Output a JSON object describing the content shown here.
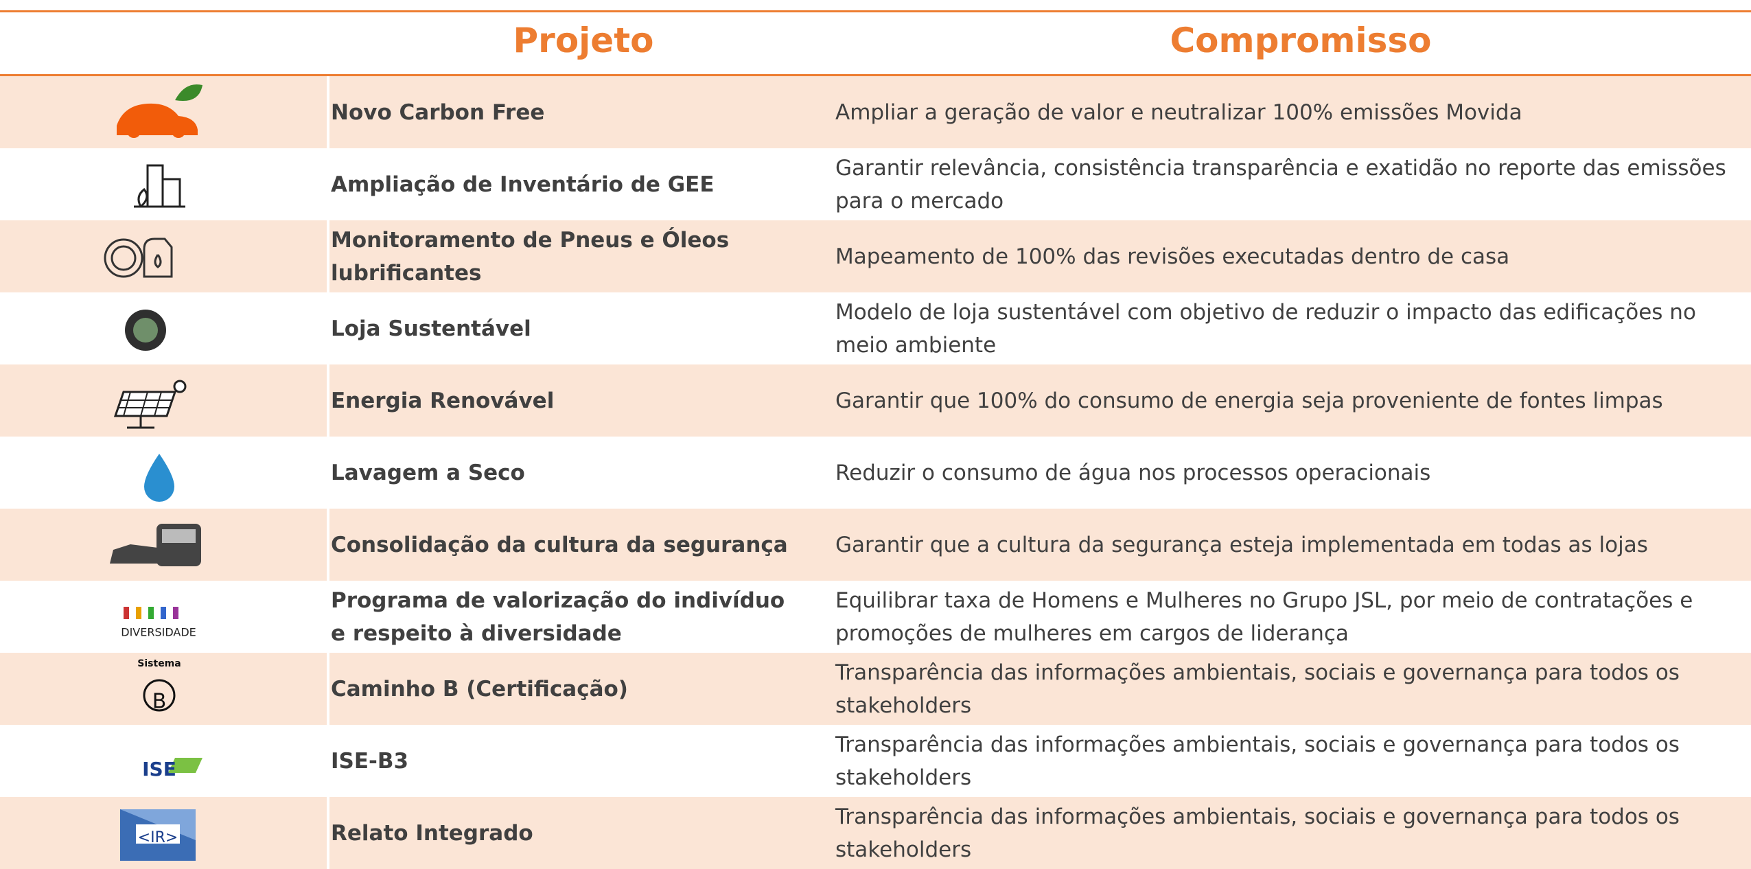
{
  "header": {
    "project": "Projeto",
    "commitment": "Compromisso"
  },
  "rows": [
    {
      "project": "Novo Carbon Free",
      "commitment": "Ampliar a geração de valor e neutralizar 100% emissões Movida"
    },
    {
      "project": "Ampliação de Inventário de GEE",
      "commitment": "Garantir relevância, consistência transparência e exatidão no reporte das emissões para o mercado"
    },
    {
      "project": "Monitoramento de Pneus e Óleos lubrificantes",
      "commitment": "Mapeamento de 100% das revisões executadas dentro de casa"
    },
    {
      "project": "Loja Sustentável",
      "commitment": "Modelo de loja sustentável com objetivo de reduzir o impacto das edificações no meio ambiente"
    },
    {
      "project": "Energia Renovável",
      "commitment": "Garantir que 100% do consumo de energia seja proveniente de fontes limpas"
    },
    {
      "project": "Lavagem a Seco",
      "commitment": "Reduzir o consumo de água nos processos operacionais"
    },
    {
      "project": "Consolidação da cultura da segurança",
      "commitment": "Garantir que a cultura da segurança esteja implementada em todas as lojas"
    },
    {
      "project": "Programa de valorização do indivíduo e respeito à diversidade",
      "commitment": "Equilibrar taxa de Homens e Mulheres no Grupo JSL, por meio de contratações e promoções de mulheres em cargos de liderança",
      "icon_texts": [
        "DIVERSIDADE"
      ]
    },
    {
      "project": "Caminho B (Certificação)",
      "commitment": "Transparência das informações ambientais, sociais e governança para todos os stakeholders",
      "icon_texts": [
        "Sistema",
        "B"
      ]
    },
    {
      "project": "ISE-B3",
      "commitment": "Transparência das informações ambientais, sociais e governança para todos os stakeholders",
      "icon_texts": [
        "ISE"
      ]
    },
    {
      "project": "Relato Integrado",
      "commitment": "Transparência das informações ambientais, sociais e governança para todos os stakeholders",
      "icon_texts": [
        "<IR>"
      ]
    }
  ]
}
